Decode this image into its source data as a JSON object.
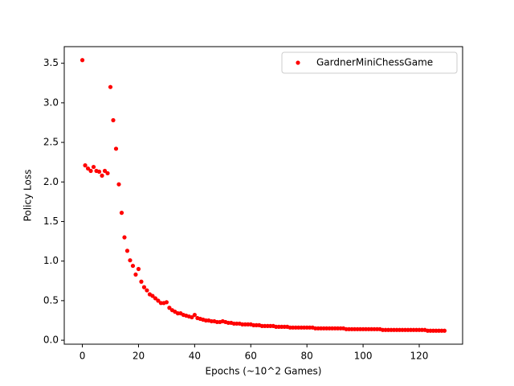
{
  "chart_data": {
    "type": "scatter",
    "xlabel": "Epochs (~10^2 Games)",
    "ylabel": "Policy Loss",
    "legend": "upper right",
    "series": [
      {
        "name": "GardnerMiniChessGame",
        "color": "#ff0000",
        "x": [
          0,
          1,
          2,
          3,
          4,
          5,
          6,
          7,
          8,
          9,
          10,
          11,
          12,
          13,
          14,
          15,
          16,
          17,
          18,
          19,
          20,
          21,
          22,
          23,
          24,
          25,
          26,
          27,
          28,
          29,
          30,
          31,
          32,
          33,
          34,
          35,
          36,
          37,
          38,
          39,
          40,
          41,
          42,
          43,
          44,
          45,
          46,
          47,
          48,
          49,
          50,
          51,
          52,
          53,
          54,
          55,
          56,
          57,
          58,
          59,
          60,
          61,
          62,
          63,
          64,
          65,
          66,
          67,
          68,
          69,
          70,
          71,
          72,
          73,
          74,
          75,
          76,
          77,
          78,
          79,
          80,
          81,
          82,
          83,
          84,
          85,
          86,
          87,
          88,
          89,
          90,
          91,
          92,
          93,
          94,
          95,
          96,
          97,
          98,
          99,
          100,
          101,
          102,
          103,
          104,
          105,
          106,
          107,
          108,
          109,
          110,
          111,
          112,
          113,
          114,
          115,
          116,
          117,
          118,
          119,
          120,
          121,
          122,
          123,
          124,
          125,
          126,
          127,
          128,
          129
        ],
        "values": [
          3.54,
          2.21,
          2.17,
          2.14,
          2.19,
          2.14,
          2.13,
          2.08,
          2.14,
          2.11,
          3.2,
          2.78,
          2.42,
          1.97,
          1.61,
          1.3,
          1.13,
          1.01,
          0.94,
          0.83,
          0.9,
          0.74,
          0.67,
          0.63,
          0.58,
          0.56,
          0.53,
          0.5,
          0.47,
          0.47,
          0.48,
          0.41,
          0.38,
          0.36,
          0.34,
          0.34,
          0.32,
          0.31,
          0.3,
          0.29,
          0.32,
          0.28,
          0.27,
          0.26,
          0.25,
          0.25,
          0.24,
          0.24,
          0.23,
          0.23,
          0.24,
          0.23,
          0.22,
          0.22,
          0.21,
          0.21,
          0.21,
          0.2,
          0.2,
          0.2,
          0.2,
          0.19,
          0.19,
          0.19,
          0.18,
          0.18,
          0.18,
          0.18,
          0.18,
          0.17,
          0.17,
          0.17,
          0.17,
          0.17,
          0.16,
          0.16,
          0.16,
          0.16,
          0.16,
          0.16,
          0.16,
          0.16,
          0.16,
          0.15,
          0.15,
          0.15,
          0.15,
          0.15,
          0.15,
          0.15,
          0.15,
          0.15,
          0.15,
          0.15,
          0.14,
          0.14,
          0.14,
          0.14,
          0.14,
          0.14,
          0.14,
          0.14,
          0.14,
          0.14,
          0.14,
          0.14,
          0.14,
          0.13,
          0.13,
          0.13,
          0.13,
          0.13,
          0.13,
          0.13,
          0.13,
          0.13,
          0.13,
          0.13,
          0.13,
          0.13,
          0.13,
          0.13,
          0.13,
          0.12,
          0.12,
          0.12,
          0.12,
          0.12,
          0.12,
          0.12
        ]
      }
    ],
    "xlim": [
      -6.45,
      135.45
    ],
    "xticks": [
      0,
      20,
      40,
      60,
      80,
      100,
      120
    ],
    "ylim": [
      -0.05,
      3.71
    ],
    "yticks": [
      {
        "value": 0,
        "label": "0.0"
      },
      0.5,
      {
        "value": 1,
        "label": "1.0"
      },
      1.5,
      {
        "value": 2,
        "label": "2.0"
      },
      2.5,
      {
        "value": 3,
        "label": "3.0"
      },
      3.5
    ]
  }
}
